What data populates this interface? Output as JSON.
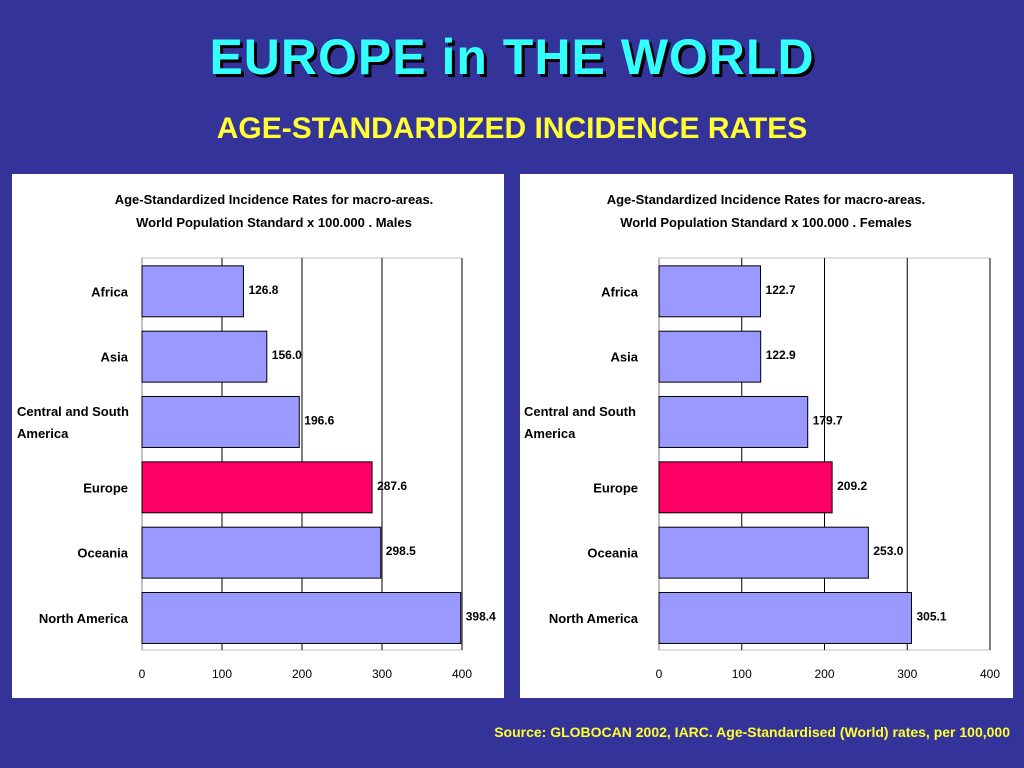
{
  "slide": {
    "title": "EUROPE in THE WORLD",
    "subtitle": "AGE-STANDARDIZED INCIDENCE RATES",
    "source": "Source: GLOBOCAN 2002, IARC. Age-Standardised (World) rates, per 100,000"
  },
  "colors": {
    "background": "#333399",
    "title": "#33ffff",
    "subtitle": "#ffff33",
    "bar": "#9999ff",
    "highlight": "#ff0066"
  },
  "chart_data": [
    {
      "type": "bar",
      "orientation": "horizontal",
      "title": "Age-Standardized Incidence Rates for macro-areas.",
      "subtitle": "World Population Standard x 100.000 . Males",
      "categories": [
        "Africa",
        "Asia",
        "Central and South America",
        "Europe",
        "Oceania",
        "North America"
      ],
      "category_lines": [
        [
          "Africa"
        ],
        [
          "Asia"
        ],
        [
          "Central and South",
          "America"
        ],
        [
          "Europe"
        ],
        [
          "Oceania"
        ],
        [
          "North America"
        ]
      ],
      "values": [
        126.8,
        156.0,
        196.6,
        287.6,
        298.5,
        398.4
      ],
      "value_labels": [
        "126.8",
        "156.0",
        "196.6",
        "287.6",
        "298.5",
        "398.4"
      ],
      "highlight": "Europe",
      "xlim": [
        0,
        400
      ],
      "xticks": [
        0,
        100,
        200,
        300,
        400
      ],
      "grid": true
    },
    {
      "type": "bar",
      "orientation": "horizontal",
      "title": "Age-Standardized Incidence Rates for macro-areas.",
      "subtitle": "World Population Standard x 100.000 . Females",
      "categories": [
        "Africa",
        "Asia",
        "Central and South America",
        "Europe",
        "Oceania",
        "North America"
      ],
      "category_lines": [
        [
          "Africa"
        ],
        [
          "Asia"
        ],
        [
          "Central and South",
          "America"
        ],
        [
          "Europe"
        ],
        [
          "Oceania"
        ],
        [
          "North America"
        ]
      ],
      "values": [
        122.7,
        122.9,
        179.7,
        209.2,
        253.0,
        305.1
      ],
      "value_labels": [
        "122.7",
        "122.9",
        "179.7",
        "209.2",
        "253.0",
        "305.1"
      ],
      "highlight": "Europe",
      "xlim": [
        0,
        400
      ],
      "xticks": [
        0,
        100,
        200,
        300,
        400
      ],
      "grid": true
    }
  ]
}
